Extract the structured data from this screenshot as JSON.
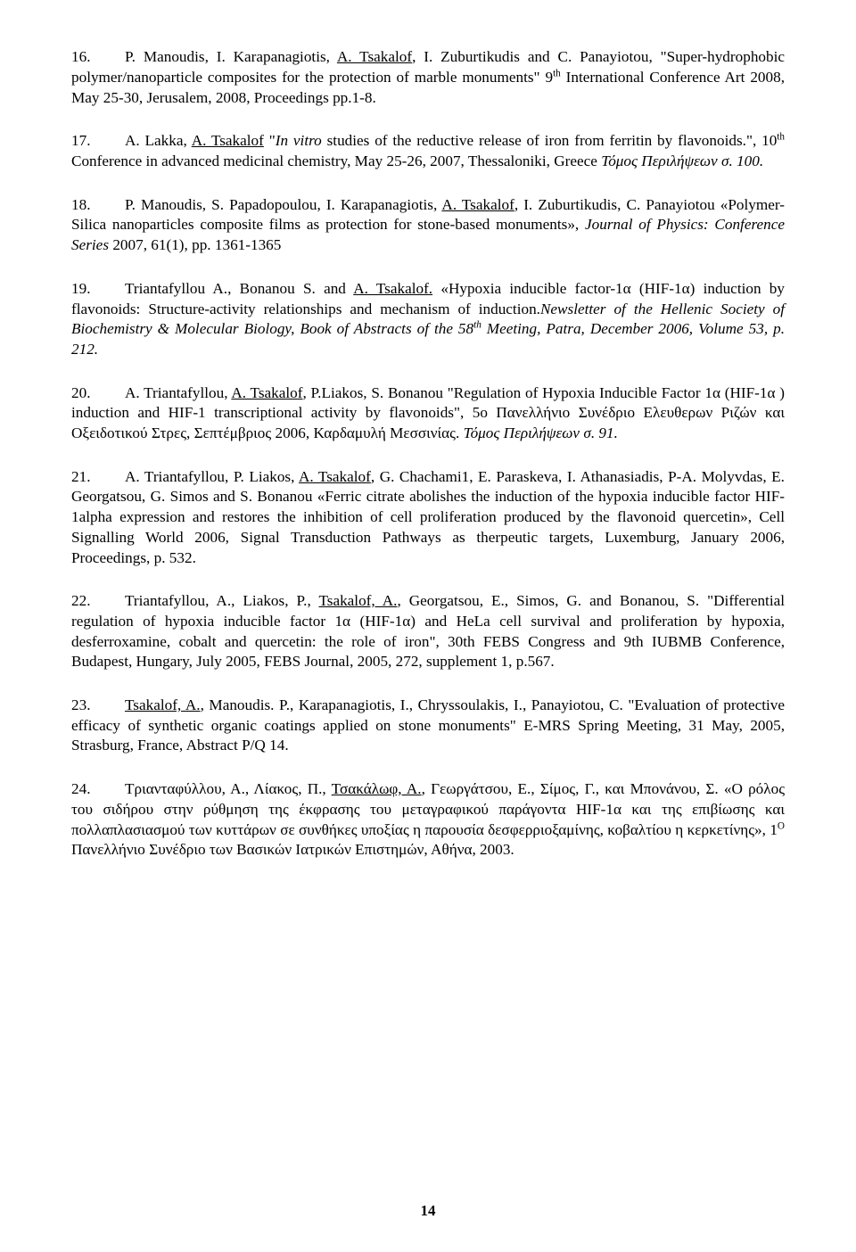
{
  "page": {
    "number": "14",
    "background": "#ffffff",
    "text_color": "#000000",
    "font_family": "Times New Roman",
    "body_fontsize_pt": 13,
    "line_height": 1.32
  },
  "refs": [
    {
      "num": "16.",
      "a": "P. Manoudis, I. Karapanagiotis, ",
      "u1": "A. Tsakalof",
      "b": ", I. Zuburtikudis and C. Panayiotou, \"Super-hydrophobic polymer/nanoparticle composites for the protection of marble monuments\" 9",
      "sup": "th",
      "c": " International Conference Art 2008, May 25-30, Jerusalem, 2008, Proceedings pp.1-8."
    },
    {
      "num": "17.",
      "a": "A. Lakka, ",
      "u1": "A. Tsakalof",
      "b": " \"",
      "i1": "In vitro",
      "c": " studies of the reductive release of iron from ferritin by flavonoids.\", 10",
      "sup": "th",
      "d": " Conference in advanced medicinal chemistry, May 25-26, 2007, Thessaloniki, Greece ",
      "i2": "Τόμος Περιλήψεων σ. 100."
    },
    {
      "num": "18.",
      "a": "P. Manoudis, S. Papadopoulou, I. Karapanagiotis, ",
      "u1": "A. Tsakalof",
      "b": ", I. Zuburtikudis, C. Panayiotou «Polymer-Silica nanoparticles composite films as protection for stone-based monuments», ",
      "i1": "Journal of Physics: Conference Series",
      "c": " 2007, 61(1), pp. 1361-1365"
    },
    {
      "num": "19.",
      "a": "Triantafyllou A., Bonanou S. and ",
      "u1": "A. Tsakalof.",
      "b": " «Hypoxia inducible factor-1α (HIF-1α) induction by flavonoids: Structure-activity relationships and mechanism of induction.",
      "i1": "Newsletter of the Hellenic Society of Biochemistry & Molecular Biology, Book of Abstracts of the 58",
      "supI": "th",
      "i2": " Meeting, Patra, December 2006, Volume 53, p. 212."
    },
    {
      "num": "20.",
      "a": "A. Triantafyllou, ",
      "u1": "A. Tsakalof",
      "b": ", P.Liakos, S. Bonanou \"Regulation of Hypoxia Inducible Factor 1α (HIF-1α ) induction and HIF-1 transcriptional activity by flavonoids\", 5o Πανελλήνιο Συνέδριο Ελευθερων Ριζών και Οξειδοτικού Στρες, Σεπτέμβριος 2006, Καρδαμυλή Μεσσινίας. ",
      "i1": "Τόμος Περιλήψεων σ. 91."
    },
    {
      "num": "21.",
      "a": "A. Triantafyllou, P. Liakos, ",
      "u1": "A. Tsakalof",
      "b": ", G. Chachami1, E. Paraskeva, I. Athanasiadis, P-A. Molyvdas, E. Georgatsou, G. Simos and S. Bonanou «Ferric citrate abolishes the induction of the hypoxia inducible factor HIF-1alpha expression and restores the inhibition of cell proliferation produced by the flavonoid quercetin», Cell Signalling World 2006, Signal Transduction Pathways as therpeutic targets, Luxemburg, January 2006, Proceedings, p. 532."
    },
    {
      "num": "22.",
      "a": "Triantafyllou, A., Liakos, P., ",
      "u1": "Tsakalof, A.",
      "b": ", Georgatsou, E., Simos, G. and Bonanou, S. \"Differential regulation of hypoxia inducible factor 1α (HIF-1α) and HeLa cell survival and proliferation by hypoxia, desferroxamine, cobalt and quercetin: the role of iron\", 30th FEBS Congress and 9th IUBMB Conference, Budapest, Hungary, July 2005, FEBS Journal, 2005, 272, supplement 1, p.567."
    },
    {
      "num": "23.",
      "u1": "Tsakalof, A.",
      "a": ", Manoudis. P., Karapanagiotis, I., Chryssoulakis, I., Panayiotou, C. \"Evaluation of protective efficacy of synthetic organic coatings applied on stone monuments\" E-MRS Spring Meeting, 31 May, 2005, Strasburg, France, Abstract P/Q 14."
    },
    {
      "num": "24.",
      "a": "Τριανταφύλλου, Α., Λίακος, Π., ",
      "u1": "Τσακάλωφ, Α.",
      "b": ", Γεωργάτσου, Ε., Σίμος, Γ., και Μπονάνου, Σ. «Ο ρόλος του σιδήρου στην ρύθμηση της έκφρασης του μεταγραφικού παράγοντα HIF-1α και της επιβίωσης και πολλαπλασιασμού των κυττάρων σε συνθήκες υποξίας η παρουσία δεσφερριοξαμίνης, κοβαλτίου η κερκετίνης», 1",
      "sup": "Ο",
      "c": " Πανελλήνιο Συνέδριο των Βασικών Ιατρικών Επιστημών, Αθήνα, 2003."
    }
  ]
}
